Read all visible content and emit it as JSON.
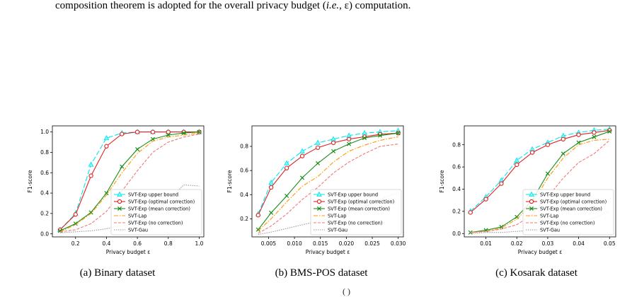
{
  "page": {
    "top_text_pre": "composition theorem is adopted for the overall privacy budget (",
    "top_text_ie": "i.e.",
    "top_text_post": ", ε) computation.",
    "bottom_fragment": "(  )"
  },
  "legend_entries": [
    "SVT-Exp upper bound",
    "SVT-Exp (optimal correction)",
    "SVT-Exp (mean correction)",
    "SVT-Lap",
    "SVT-Exp (no correction)",
    "SVT-Gau"
  ],
  "series_styles": [
    {
      "color": "#00e5ee",
      "dash": "7,3",
      "marker": "triangle"
    },
    {
      "color": "#e02020",
      "dash": "",
      "marker": "circle"
    },
    {
      "color": "#1a8c1a",
      "dash": "",
      "marker": "x"
    },
    {
      "color": "#ff9900",
      "dash": "6,2,1.5,2",
      "marker": "none"
    },
    {
      "color": "#f07878",
      "dash": "4,2",
      "marker": "none"
    },
    {
      "color": "#999999",
      "dash": "1.5,1.5",
      "marker": "none"
    }
  ],
  "chart_data": [
    {
      "type": "line",
      "caption": "(a) Binary dataset",
      "xlabel": "Privacy budget ε",
      "ylabel": "F1-score",
      "xlim": [
        0.05,
        1.03
      ],
      "ylim": [
        -0.03,
        1.06
      ],
      "xticks": [
        0.2,
        0.4,
        0.6,
        0.8,
        1.0
      ],
      "xtick_labels": [
        "0.2",
        "0.4",
        "0.6",
        "0.8",
        "1.0"
      ],
      "yticks": [
        0.0,
        0.2,
        0.4,
        0.6,
        0.8,
        1.0
      ],
      "ytick_labels": [
        "0.0",
        "0.2",
        "0.4",
        "0.6",
        "0.8",
        "1.0"
      ],
      "legend_position": "lower-right",
      "x": [
        0.1,
        0.2,
        0.3,
        0.4,
        0.5,
        0.6,
        0.7,
        0.8,
        0.9,
        1.0
      ],
      "series": [
        {
          "name": "SVT-Exp upper bound",
          "values": [
            0.04,
            0.2,
            0.68,
            0.94,
            0.99,
            1.0,
            1.0,
            1.0,
            1.0,
            1.0
          ]
        },
        {
          "name": "SVT-Exp (optimal correction)",
          "values": [
            0.04,
            0.19,
            0.57,
            0.86,
            0.98,
            1.0,
            1.0,
            1.0,
            1.0,
            1.0
          ]
        },
        {
          "name": "SVT-Exp (mean correction)",
          "values": [
            0.03,
            0.1,
            0.21,
            0.4,
            0.66,
            0.83,
            0.93,
            0.97,
            0.99,
            1.0
          ]
        },
        {
          "name": "SVT-Lap",
          "values": [
            0.02,
            0.09,
            0.2,
            0.38,
            0.6,
            0.79,
            0.91,
            0.95,
            0.97,
            0.99
          ]
        },
        {
          "name": "SVT-Exp (no correction)",
          "values": [
            0.02,
            0.04,
            0.1,
            0.22,
            0.42,
            0.62,
            0.8,
            0.9,
            0.95,
            0.98
          ]
        },
        {
          "name": "SVT-Gau",
          "values": [
            0.01,
            0.02,
            0.03,
            0.05,
            0.08,
            0.12,
            0.2,
            0.33,
            0.48,
            0.47
          ]
        }
      ]
    },
    {
      "type": "line",
      "caption": "(b) BMS-POS dataset",
      "xlabel": "Privacy budget ε",
      "ylabel": "F1-score",
      "xlim": [
        0.0018,
        0.031
      ],
      "ylim": [
        0.05,
        0.97
      ],
      "xticks": [
        0.005,
        0.01,
        0.015,
        0.02,
        0.025,
        0.03
      ],
      "xtick_labels": [
        "0.005",
        "0.010",
        "0.015",
        "0.020",
        "0.025",
        "0.030"
      ],
      "yticks": [
        0.2,
        0.4,
        0.6,
        0.8
      ],
      "ytick_labels": [
        "0.2",
        "0.4",
        "0.6",
        "0.8"
      ],
      "legend_position": "lower-right",
      "x": [
        0.003,
        0.0055,
        0.0085,
        0.0115,
        0.0145,
        0.0175,
        0.0205,
        0.0235,
        0.0265,
        0.03
      ],
      "series": [
        {
          "name": "SVT-Exp upper bound",
          "values": [
            0.24,
            0.5,
            0.66,
            0.76,
            0.83,
            0.86,
            0.89,
            0.91,
            0.92,
            0.93
          ]
        },
        {
          "name": "SVT-Exp (optimal correction)",
          "values": [
            0.23,
            0.46,
            0.62,
            0.72,
            0.79,
            0.83,
            0.86,
            0.88,
            0.9,
            0.91
          ]
        },
        {
          "name": "SVT-Exp (mean correction)",
          "values": [
            0.11,
            0.25,
            0.39,
            0.54,
            0.66,
            0.76,
            0.82,
            0.87,
            0.89,
            0.91
          ]
        },
        {
          "name": "SVT-Lap",
          "values": [
            0.1,
            0.2,
            0.34,
            0.47,
            0.55,
            0.67,
            0.76,
            0.81,
            0.85,
            0.88
          ]
        },
        {
          "name": "SVT-Exp (no correction)",
          "values": [
            0.08,
            0.14,
            0.24,
            0.36,
            0.46,
            0.58,
            0.67,
            0.74,
            0.8,
            0.82
          ]
        },
        {
          "name": "SVT-Gau",
          "values": [
            0.07,
            0.09,
            0.12,
            0.15,
            0.18,
            0.21,
            0.25,
            0.3,
            0.36,
            0.42
          ]
        }
      ]
    },
    {
      "type": "line",
      "caption": "(c) Kosarak dataset",
      "xlabel": "Privacy budget ε",
      "ylabel": "F1-score",
      "xlim": [
        0.003,
        0.052
      ],
      "ylim": [
        -0.03,
        0.97
      ],
      "xticks": [
        0.01,
        0.02,
        0.03,
        0.04,
        0.05
      ],
      "xtick_labels": [
        "0.01",
        "0.02",
        "0.03",
        "0.04",
        "0.05"
      ],
      "yticks": [
        0.0,
        0.2,
        0.4,
        0.6,
        0.8
      ],
      "ytick_labels": [
        "0.0",
        "0.2",
        "0.4",
        "0.6",
        "0.8"
      ],
      "legend_position": "lower-right",
      "x": [
        0.005,
        0.01,
        0.015,
        0.02,
        0.025,
        0.03,
        0.035,
        0.04,
        0.045,
        0.05
      ],
      "series": [
        {
          "name": "SVT-Exp upper bound",
          "values": [
            0.2,
            0.33,
            0.48,
            0.66,
            0.76,
            0.82,
            0.88,
            0.91,
            0.93,
            0.94
          ]
        },
        {
          "name": "SVT-Exp (optimal correction)",
          "values": [
            0.19,
            0.31,
            0.45,
            0.62,
            0.73,
            0.8,
            0.85,
            0.89,
            0.91,
            0.93
          ]
        },
        {
          "name": "SVT-Exp (mean correction)",
          "values": [
            0.01,
            0.03,
            0.06,
            0.15,
            0.3,
            0.54,
            0.72,
            0.82,
            0.87,
            0.92
          ]
        },
        {
          "name": "SVT-Lap",
          "values": [
            0.01,
            0.02,
            0.05,
            0.13,
            0.27,
            0.5,
            0.68,
            0.8,
            0.84,
            0.85
          ]
        },
        {
          "name": "SVT-Exp (no correction)",
          "values": [
            0.01,
            0.02,
            0.04,
            0.08,
            0.17,
            0.33,
            0.5,
            0.64,
            0.72,
            0.84
          ]
        },
        {
          "name": "SVT-Gau",
          "values": [
            0.0,
            0.01,
            0.01,
            0.02,
            0.03,
            0.04,
            0.06,
            0.09,
            0.14,
            0.2
          ]
        }
      ]
    }
  ]
}
